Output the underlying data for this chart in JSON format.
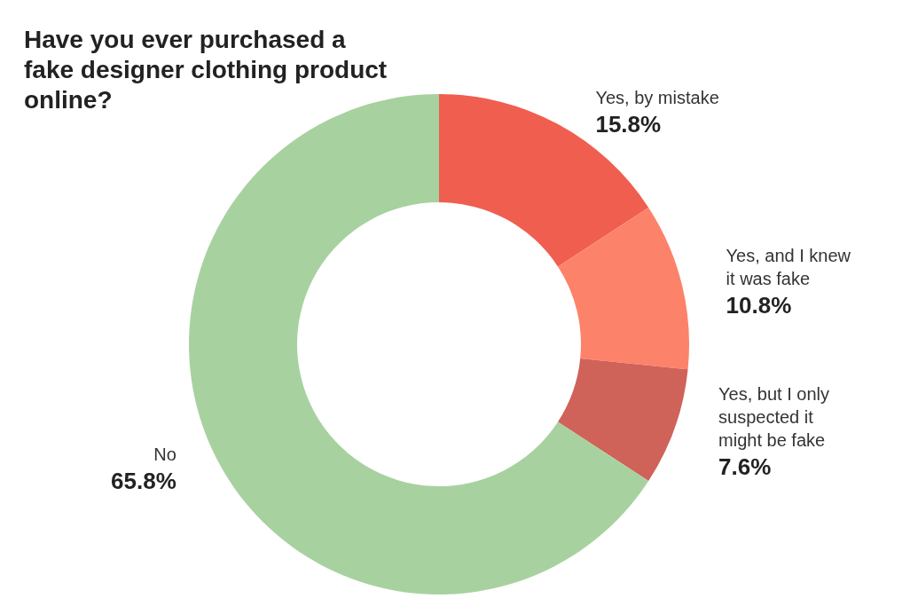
{
  "chart_data": {
    "type": "donut",
    "title": "Have you ever purchased a fake designer clothing product online?",
    "categories": [
      "Yes, by mistake",
      "Yes, and I knew it was fake",
      "Yes, but I only suspected it might be fake",
      "No"
    ],
    "values": [
      15.8,
      10.8,
      7.6,
      65.8
    ],
    "colors": [
      "#ef5e4f",
      "#fd826a",
      "#cf6259",
      "#a8d1a0"
    ],
    "value_labels": [
      "15.8%",
      "10.8%",
      "7.6%",
      "65.8%"
    ]
  }
}
